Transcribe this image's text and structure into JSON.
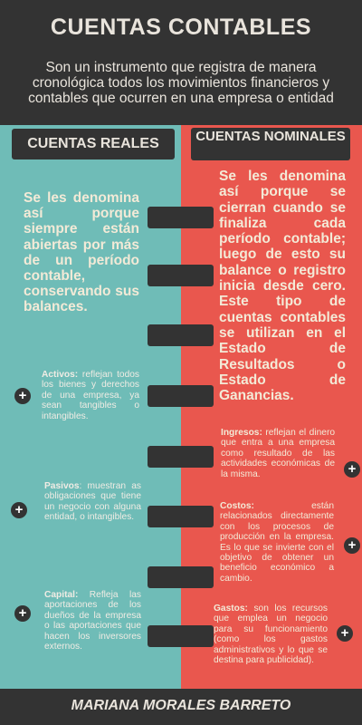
{
  "header": {
    "title": "CUENTAS CONTABLES",
    "subtitle": "Son un instrumento que registra de manera cronológica todos los movimientos financieros y contables que ocurren en una empresa o entidad"
  },
  "left": {
    "heading": "CUENTAS REALES",
    "description": "Se les denomina así porque siempre están abiertas por más de un período contable, conservando sus balances.",
    "items": [
      {
        "name": "Activos:",
        "text": " reflejan todos los bienes y derechos de una empresa, ya sean tangibles o intangibles."
      },
      {
        "name": "Pasivos",
        "text": ": muestran as obligaciones que tiene un negocio con alguna entidad, o intangibles."
      },
      {
        "name": "Capital:",
        "text": " Refleja las aportaciones de los dueños de la empresa o las aportaciones que hacen los inversores externos."
      }
    ]
  },
  "right": {
    "heading": "CUENTAS NOMINALES",
    "description": "Se les denomina así porque se cierran cuando se finaliza cada período contable; luego de esto su balance o registro inicia desde cero. Este tipo de cuentas contables se utilizan en el Estado de Resultados o Estado de Ganancias.",
    "items": [
      {
        "name": "Ingresos:",
        "text": " reflejan el dinero que entra a una empresa como resultado de las actividades económicas de la misma."
      },
      {
        "name": "Costos:",
        "text": " están relacionados directamente con los procesos de producción en la empresa. Es lo que se invierte con el objetivo de obtener un beneficio económico a cambio."
      },
      {
        "name": "Gastos:",
        "text": " son los recursos que emplea un negocio para su funcionamiento (como los gastos administrativos y lo que se destina para publicidad)."
      }
    ]
  },
  "plus_symbol": "+",
  "footer": {
    "author": "MARIANA MORALES BARRETO"
  },
  "colors": {
    "left_bg": "#6fbcb7",
    "right_bg": "#e9574e",
    "dark": "#333333",
    "text_light": "#e9e4dc"
  }
}
